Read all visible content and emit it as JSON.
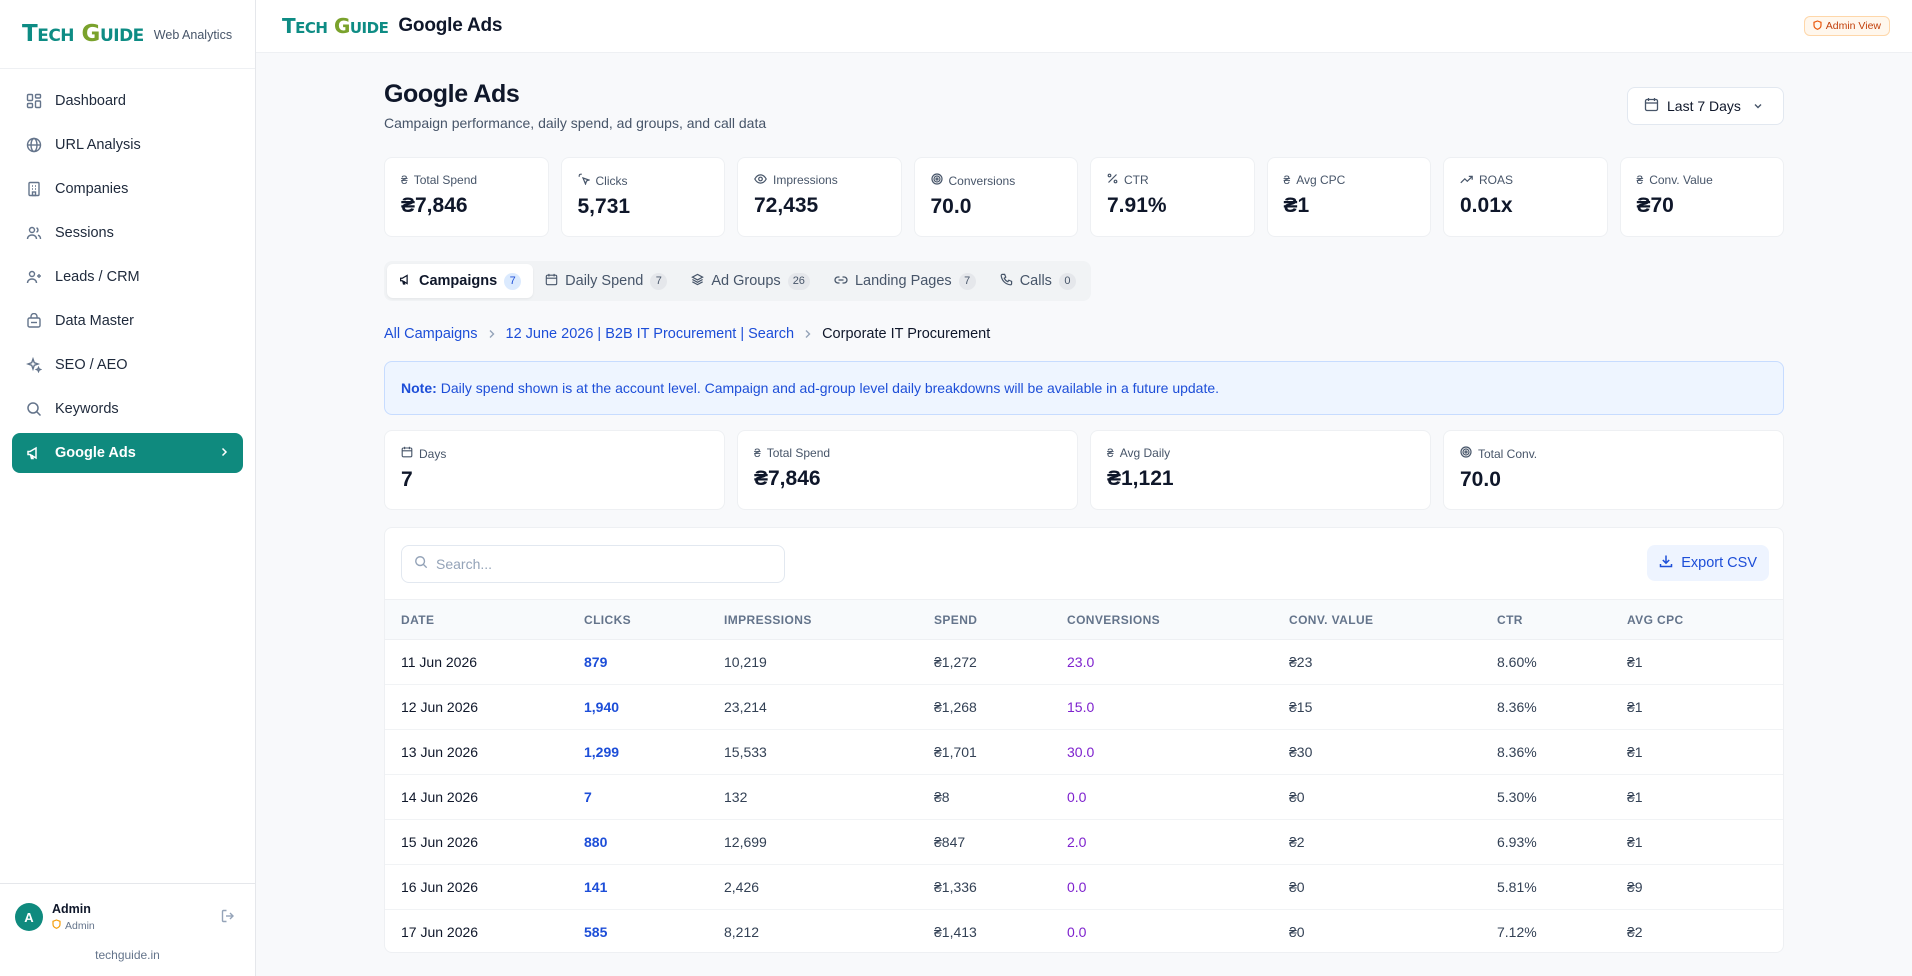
{
  "sidebar": {
    "brand_logo": "TECH GUIDE",
    "brand_sub": "Web Analytics",
    "items": [
      {
        "label": "Dashboard",
        "icon": "grid-icon"
      },
      {
        "label": "URL Analysis",
        "icon": "globe-icon"
      },
      {
        "label": "Companies",
        "icon": "building-icon"
      },
      {
        "label": "Sessions",
        "icon": "users-icon"
      },
      {
        "label": "Leads / CRM",
        "icon": "user-plus-icon"
      },
      {
        "label": "Data Master",
        "icon": "database-icon"
      },
      {
        "label": "SEO / AEO",
        "icon": "sparkles-icon"
      },
      {
        "label": "Keywords",
        "icon": "search-icon"
      },
      {
        "label": "Google Ads",
        "icon": "megaphone-icon",
        "active": true
      }
    ],
    "user": {
      "initial": "A",
      "name": "Admin",
      "role": "Admin"
    },
    "site": "techguide.in"
  },
  "topbar": {
    "logo": "TECH GUIDE",
    "title": "Google Ads",
    "badge": "Admin View"
  },
  "header": {
    "title": "Google Ads",
    "subtitle": "Campaign performance, daily spend, ad groups, and call data",
    "date_range": "Last 7 Days"
  },
  "kpis": [
    {
      "label": "Total Spend",
      "value": "₴7,846",
      "icon": "rupee-icon"
    },
    {
      "label": "Clicks",
      "value": "5,731",
      "icon": "cursor-click-icon"
    },
    {
      "label": "Impressions",
      "value": "72,435",
      "icon": "eye-icon"
    },
    {
      "label": "Conversions",
      "value": "70.0",
      "icon": "target-icon"
    },
    {
      "label": "CTR",
      "value": "7.91%",
      "icon": "percent-icon"
    },
    {
      "label": "Avg CPC",
      "value": "₴1",
      "icon": "rupee-icon"
    },
    {
      "label": "ROAS",
      "value": "0.01x",
      "icon": "trending-up-icon"
    },
    {
      "label": "Conv. Value",
      "value": "₴70",
      "icon": "rupee-icon"
    }
  ],
  "tabs": [
    {
      "label": "Campaigns",
      "count": "7",
      "active": true
    },
    {
      "label": "Daily Spend",
      "count": "7"
    },
    {
      "label": "Ad Groups",
      "count": "26"
    },
    {
      "label": "Landing Pages",
      "count": "7"
    },
    {
      "label": "Calls",
      "count": "0"
    }
  ],
  "breadcrumb": {
    "root": "All Campaigns",
    "campaign": "12 June 2026 | B2B IT Procurement | Search",
    "current": "Corporate IT Procurement"
  },
  "note": {
    "label": "Note:",
    "text": "Daily spend shown is at the account level. Campaign and ad-group level daily breakdowns will be available in a future update."
  },
  "summary": [
    {
      "label": "Days",
      "value": "7",
      "icon": "calendar-icon"
    },
    {
      "label": "Total Spend",
      "value": "₴7,846",
      "icon": "rupee-icon"
    },
    {
      "label": "Avg Daily",
      "value": "₴1,121",
      "icon": "rupee-icon"
    },
    {
      "label": "Total Conv.",
      "value": "70.0",
      "icon": "target-icon"
    }
  ],
  "table": {
    "search_placeholder": "Search...",
    "export_label": "Export CSV",
    "columns": [
      "DATE",
      "CLICKS",
      "IMPRESSIONS",
      "SPEND",
      "CONVERSIONS",
      "CONV. VALUE",
      "CTR",
      "AVG CPC"
    ],
    "rows": [
      [
        "11 Jun 2026",
        "879",
        "10,219",
        "₴1,272",
        "23.0",
        "₴23",
        "8.60%",
        "₴1"
      ],
      [
        "12 Jun 2026",
        "1,940",
        "23,214",
        "₴1,268",
        "15.0",
        "₴15",
        "8.36%",
        "₴1"
      ],
      [
        "13 Jun 2026",
        "1,299",
        "15,533",
        "₴1,701",
        "30.0",
        "₴30",
        "8.36%",
        "₴1"
      ],
      [
        "14 Jun 2026",
        "7",
        "132",
        "₴8",
        "0.0",
        "₴0",
        "5.30%",
        "₴1"
      ],
      [
        "15 Jun 2026",
        "880",
        "12,699",
        "₴847",
        "2.0",
        "₴2",
        "6.93%",
        "₴1"
      ],
      [
        "16 Jun 2026",
        "141",
        "2,426",
        "₴1,336",
        "0.0",
        "₴0",
        "5.81%",
        "₴9"
      ],
      [
        "17 Jun 2026",
        "585",
        "8,212",
        "₴1,413",
        "0.0",
        "₴0",
        "7.12%",
        "₴2"
      ]
    ]
  },
  "colors": {
    "accent": "#0f8a7e",
    "link": "#1d4ed8",
    "conversion": "#7e22ce",
    "note_bg": "#eef5ff"
  }
}
